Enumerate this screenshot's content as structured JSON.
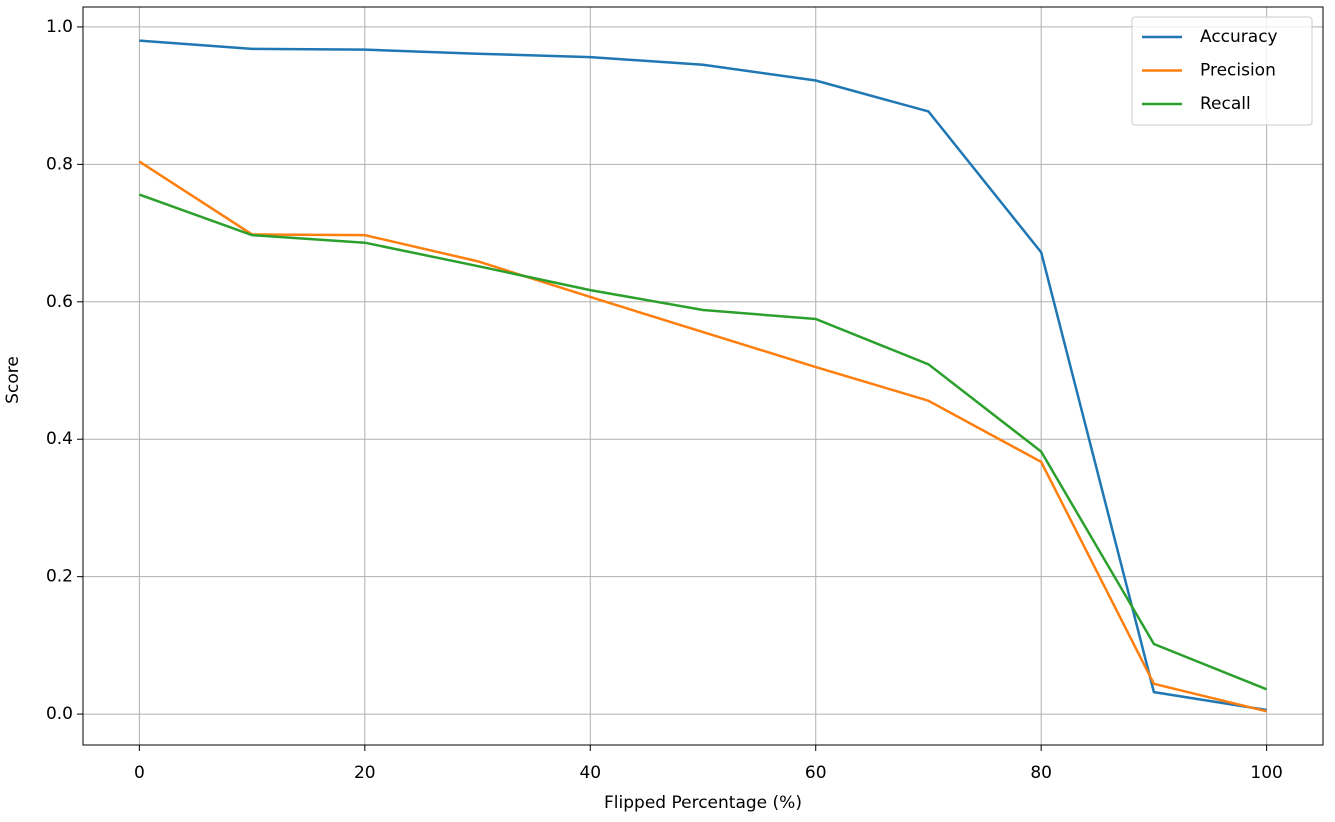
{
  "chart_data": {
    "type": "line",
    "x_label": "Flipped Percentage (%)",
    "y_label": "Score",
    "x": [
      0,
      10,
      20,
      30,
      40,
      50,
      60,
      70,
      80,
      90,
      100
    ],
    "series": [
      {
        "name": "Accuracy",
        "color": "#1f77b4",
        "values": [
          0.98,
          0.968,
          0.967,
          0.961,
          0.956,
          0.945,
          0.922,
          0.877,
          0.672,
          0.032,
          0.006
        ]
      },
      {
        "name": "Precision",
        "color": "#ff7f0e",
        "values": [
          0.804,
          0.698,
          0.697,
          0.659,
          0.607,
          0.556,
          0.505,
          0.456,
          0.367,
          0.044,
          0.004
        ]
      },
      {
        "name": "Recall",
        "color": "#2ca02c",
        "values": [
          0.756,
          0.697,
          0.686,
          0.652,
          0.617,
          0.588,
          0.575,
          0.509,
          0.382,
          0.102,
          0.036
        ]
      }
    ],
    "xlim": [
      -5,
      105
    ],
    "ylim": [
      -0.045,
      1.029
    ],
    "xticks": [
      0,
      20,
      40,
      60,
      80,
      100
    ],
    "yticks": [
      {
        "value": 0,
        "label": "0.0"
      },
      {
        "value": 0.2,
        "label": "0.2"
      },
      {
        "value": 0.4,
        "label": "0.4"
      },
      {
        "value": 0.6,
        "label": "0.6"
      },
      {
        "value": 0.8,
        "label": "0.8"
      },
      {
        "value": 1,
        "label": "1.0"
      }
    ],
    "grid": true,
    "legend": "upper right"
  }
}
